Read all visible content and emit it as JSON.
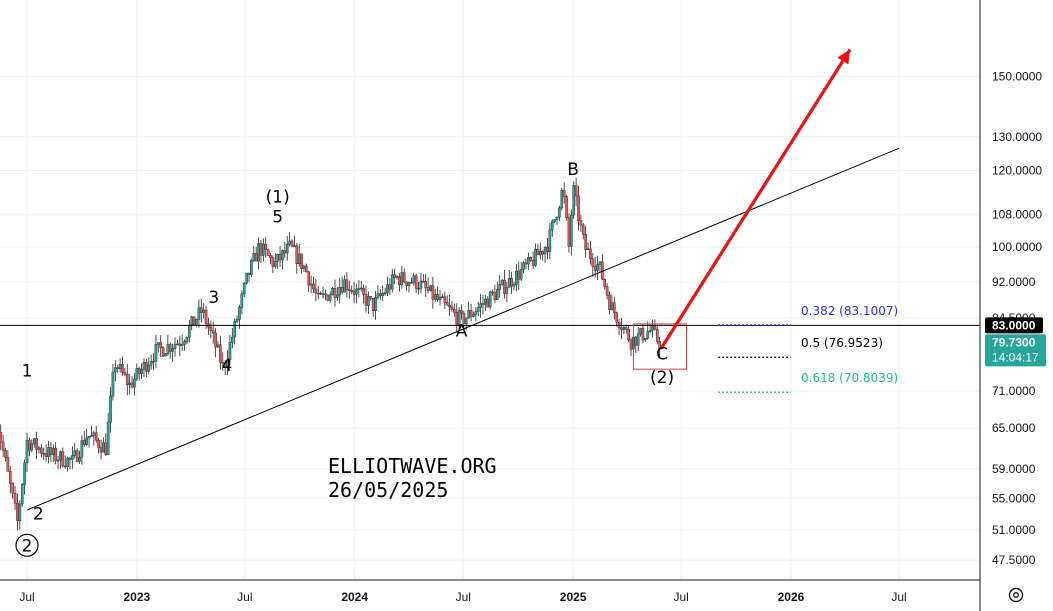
{
  "chart_data": {
    "type": "candlestick",
    "y_scale": "log",
    "ylim": [
      45.3,
      180
    ],
    "y_ticks": [
      "150.0000",
      "130.0000",
      "120.0000",
      "108.0000",
      "100.0000",
      "92.0000",
      "84.5000",
      "71.0000",
      "65.0000",
      "59.0000",
      "55.0000",
      "51.0000",
      "47.5000"
    ],
    "x_ticks": [
      {
        "label": "Jul",
        "date": "2022-07-01",
        "bold": false
      },
      {
        "label": "2023",
        "date": "2023-01-01",
        "bold": true
      },
      {
        "label": "Jul",
        "date": "2023-07-01",
        "bold": false
      },
      {
        "label": "2024",
        "date": "2024-01-01",
        "bold": true
      },
      {
        "label": "Jul",
        "date": "2024-07-01",
        "bold": false
      },
      {
        "label": "2025",
        "date": "2025-01-01",
        "bold": true
      },
      {
        "label": "Jul",
        "date": "2025-07-01",
        "bold": false
      },
      {
        "label": "2026",
        "date": "2026-01-01",
        "bold": true
      },
      {
        "label": "Jul",
        "date": "2026-07-01",
        "bold": false
      }
    ],
    "price_path": [
      [
        "2022-05-10",
        67
      ],
      [
        "2022-06-15",
        52
      ],
      [
        "2022-07-01",
        63
      ],
      [
        "2022-08-10",
        61
      ],
      [
        "2022-09-15",
        60
      ],
      [
        "2022-10-10",
        64
      ],
      [
        "2022-11-10",
        62
      ],
      [
        "2022-11-25",
        76
      ],
      [
        "2022-12-20",
        72
      ],
      [
        "2023-02-01",
        78
      ],
      [
        "2023-03-15",
        80
      ],
      [
        "2023-04-20",
        86
      ],
      [
        "2023-05-10",
        80
      ],
      [
        "2023-05-26",
        75
      ],
      [
        "2023-06-15",
        83
      ],
      [
        "2023-07-05",
        93
      ],
      [
        "2023-07-25",
        100
      ],
      [
        "2023-08-20",
        96
      ],
      [
        "2023-09-15",
        100
      ],
      [
        "2023-10-10",
        95
      ],
      [
        "2023-11-01",
        88
      ],
      [
        "2023-12-15",
        92
      ],
      [
        "2024-02-01",
        87
      ],
      [
        "2024-03-10",
        93
      ],
      [
        "2024-04-15",
        92
      ],
      [
        "2024-05-20",
        88
      ],
      [
        "2024-06-28",
        84
      ],
      [
        "2024-07-20",
        86
      ],
      [
        "2024-09-15",
        92
      ],
      [
        "2024-10-20",
        96
      ],
      [
        "2024-11-20",
        101
      ],
      [
        "2024-12-15",
        115
      ],
      [
        "2024-12-25",
        100
      ],
      [
        "2025-01-01",
        115
      ],
      [
        "2025-01-20",
        100
      ],
      [
        "2025-02-15",
        95
      ],
      [
        "2025-03-05",
        87
      ],
      [
        "2025-04-08",
        80
      ],
      [
        "2025-05-10",
        82
      ],
      [
        "2025-05-26",
        79.73
      ]
    ],
    "current_price": "79.7300",
    "countdown": "14:04:17",
    "horizontal_level": {
      "value": 83,
      "label": "83.0000"
    },
    "trendline": {
      "from": [
        "2022-07-01",
        53.5
      ],
      "to": [
        "2026-07-01",
        126.5
      ]
    },
    "projection_arrow": {
      "from": [
        "2025-05-28",
        78.5
      ],
      "to": [
        "2026-04-10",
        160
      ]
    },
    "target_box": {
      "x": [
        "2025-04-12",
        "2025-07-10"
      ],
      "y": [
        83.3,
        74.8
      ]
    },
    "fib_levels": [
      {
        "ratio": "0.382",
        "value": 83.1007,
        "label": "0.382 (83.1007)",
        "color": "#2a2ef5"
      },
      {
        "ratio": "0.5",
        "value": 76.9523,
        "label": "0.5 (76.9523)",
        "color": "#000000"
      },
      {
        "ratio": "0.618",
        "value": 70.8039,
        "label": "0.618 (70.8039)",
        "color": "#1fbf8a"
      }
    ],
    "wave_labels": [
      {
        "text": "1",
        "date": "2022-07-01",
        "price": 73.5
      },
      {
        "text": "2",
        "date": "2022-07-20",
        "price": 52.3
      },
      {
        "text": "②",
        "date": "2022-07-01",
        "price": 48.5,
        "circled": true
      },
      {
        "text": "3",
        "date": "2023-05-10",
        "price": 87.5
      },
      {
        "text": "4",
        "date": "2023-06-01",
        "price": 74.5
      },
      {
        "text": "(1)",
        "date": "2023-08-25",
        "price": 111.2
      },
      {
        "text": "5",
        "date": "2023-08-25",
        "price": 106.0
      },
      {
        "text": "A",
        "date": "2024-06-28",
        "price": 80.8
      },
      {
        "text": "B",
        "date": "2025-01-01",
        "price": 118.7
      },
      {
        "text": "C",
        "date": "2025-05-30",
        "price": 76.5
      },
      {
        "text": "(2)",
        "date": "2025-05-30",
        "price": 72.4
      }
    ],
    "annotations": [
      "ELLIOTWAVE.ORG",
      "26/05/2025"
    ],
    "colors": {
      "up": "#26a69a",
      "down": "#ef5350",
      "line": "#000000",
      "arrow": "#ee1111",
      "box": "#e53935"
    }
  },
  "icons": {
    "settings": "gear-icon"
  }
}
